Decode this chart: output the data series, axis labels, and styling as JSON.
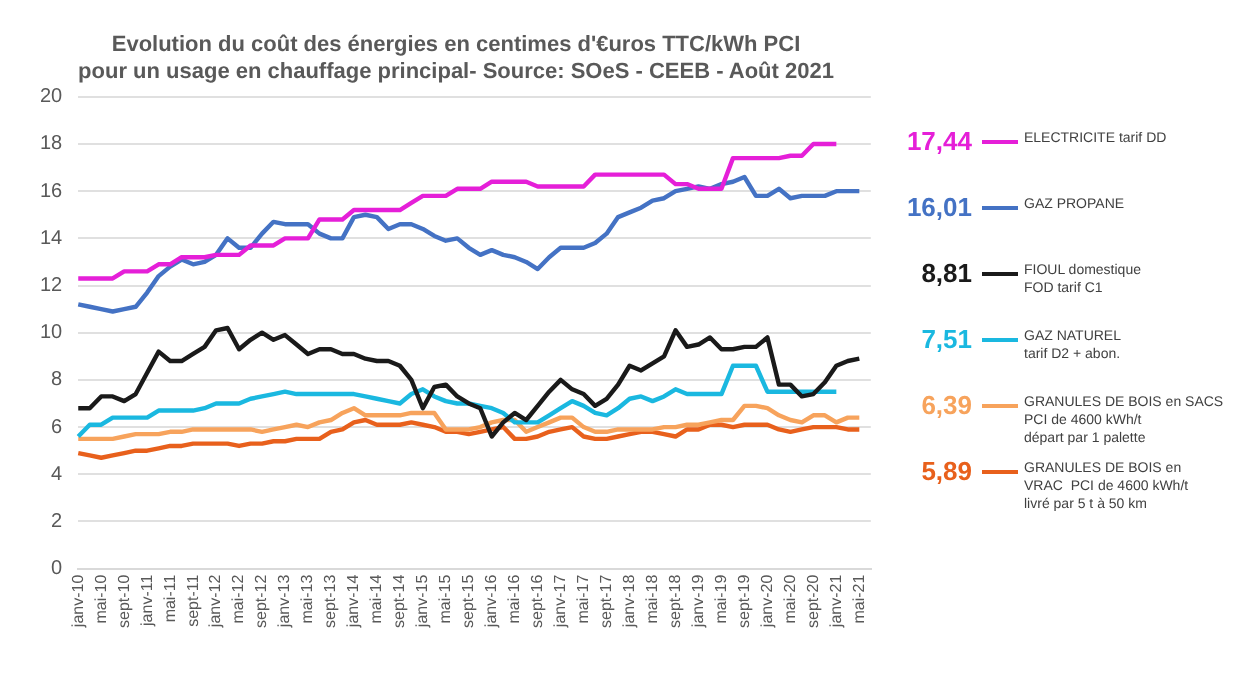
{
  "chart_data": {
    "type": "line",
    "title": "Evolution du coût des énergies en centimes d'€uros TTC/kWh PCI\npour un usage en chauffage principal- Source: SOeS - CEEB - Août 2021",
    "categories": [
      "janv-10",
      null,
      "mai-10",
      null,
      "sept-10",
      null,
      "janv-11",
      null,
      "mai-11",
      null,
      "sept-11",
      null,
      "janv-12",
      null,
      "mai-12",
      null,
      "sept-12",
      null,
      "janv-13",
      null,
      "mai-13",
      null,
      "sept-13",
      null,
      "janv-14",
      null,
      "mai-14",
      null,
      "sept-14",
      null,
      "janv-15",
      null,
      "mai-15",
      null,
      "sept-15",
      null,
      "janv-16",
      null,
      "mai-16",
      null,
      "sept-16",
      null,
      "janv-17",
      null,
      "mai-17",
      null,
      "sept-17",
      null,
      "janv-18",
      null,
      "mai-18",
      null,
      "sept-18",
      null,
      "janv-19",
      null,
      "mai-19",
      null,
      "sept-19",
      null,
      "janv-20",
      null,
      "mai-20",
      null,
      "sept-20",
      null,
      "janv-21",
      null,
      "mai-21",
      null
    ],
    "series": [
      {
        "name": "ELECTRICITE tarif DD",
        "color": "#e51fd8",
        "values": [
          12.3,
          12.3,
          12.3,
          12.3,
          12.6,
          12.6,
          12.6,
          12.9,
          12.9,
          13.2,
          13.2,
          13.2,
          13.3,
          13.3,
          13.3,
          13.7,
          13.7,
          13.7,
          14.0,
          14.0,
          14.0,
          14.8,
          14.8,
          14.8,
          15.2,
          15.2,
          15.2,
          15.2,
          15.2,
          15.5,
          15.8,
          15.8,
          15.8,
          16.1,
          16.1,
          16.1,
          16.4,
          16.4,
          16.4,
          16.4,
          16.2,
          16.2,
          16.2,
          16.2,
          16.2,
          16.7,
          16.7,
          16.7,
          16.7,
          16.7,
          16.7,
          16.7,
          16.3,
          16.3,
          16.1,
          16.1,
          16.1,
          17.4,
          17.4,
          17.4,
          17.4,
          17.4,
          17.5,
          17.5,
          18.0,
          18.0,
          18.0,
          null,
          null,
          null
        ]
      },
      {
        "name": "GAZ PROPANE",
        "color": "#4472c4",
        "values": [
          11.2,
          11.1,
          11.0,
          10.9,
          11.0,
          11.1,
          11.7,
          12.4,
          12.8,
          13.1,
          12.9,
          13.0,
          13.3,
          14.0,
          13.6,
          13.6,
          14.2,
          14.7,
          14.6,
          14.6,
          14.6,
          14.2,
          14.0,
          14.0,
          14.9,
          15.0,
          14.9,
          14.4,
          14.6,
          14.6,
          14.4,
          14.1,
          13.9,
          14.0,
          13.6,
          13.3,
          13.5,
          13.3,
          13.2,
          13.0,
          12.7,
          13.2,
          13.6,
          13.6,
          13.6,
          13.8,
          14.2,
          14.9,
          15.1,
          15.3,
          15.6,
          15.7,
          16.0,
          16.1,
          16.2,
          16.1,
          16.3,
          16.4,
          16.6,
          15.8,
          15.8,
          16.1,
          15.7,
          15.8,
          15.8,
          15.8,
          16.0,
          16.0,
          16.0,
          null
        ]
      },
      {
        "name": "FIOUL domestique\nFOD tarif C1",
        "color": "#1a1a1a",
        "values": [
          6.8,
          6.8,
          7.3,
          7.3,
          7.1,
          7.4,
          8.3,
          9.2,
          8.8,
          8.8,
          9.1,
          9.4,
          10.1,
          10.2,
          9.3,
          9.7,
          10.0,
          9.7,
          9.9,
          9.5,
          9.1,
          9.3,
          9.3,
          9.1,
          9.1,
          8.9,
          8.8,
          8.8,
          8.6,
          8.0,
          6.8,
          7.7,
          7.8,
          7.3,
          7.0,
          6.8,
          5.6,
          6.2,
          6.6,
          6.3,
          6.9,
          7.5,
          8.0,
          7.6,
          7.4,
          6.9,
          7.2,
          7.8,
          8.6,
          8.4,
          8.7,
          9.0,
          10.1,
          9.4,
          9.5,
          9.8,
          9.3,
          9.3,
          9.4,
          9.4,
          9.8,
          7.8,
          7.8,
          7.3,
          7.4,
          7.9,
          8.6,
          8.8,
          8.9,
          null
        ]
      },
      {
        "name": "GAZ NATUREL\ntarif D2 + abon.",
        "color": "#1ab8e0",
        "values": [
          5.6,
          6.1,
          6.1,
          6.4,
          6.4,
          6.4,
          6.4,
          6.7,
          6.7,
          6.7,
          6.7,
          6.8,
          7.0,
          7.0,
          7.0,
          7.2,
          7.3,
          7.4,
          7.5,
          7.4,
          7.4,
          7.4,
          7.4,
          7.4,
          7.4,
          7.3,
          7.2,
          7.1,
          7.0,
          7.4,
          7.6,
          7.3,
          7.1,
          7.0,
          7.0,
          6.9,
          6.8,
          6.6,
          6.2,
          6.2,
          6.2,
          6.5,
          6.8,
          7.1,
          6.9,
          6.6,
          6.5,
          6.8,
          7.2,
          7.3,
          7.1,
          7.3,
          7.6,
          7.4,
          7.4,
          7.4,
          7.4,
          8.6,
          8.6,
          8.6,
          7.5,
          7.5,
          7.5,
          7.5,
          7.5,
          7.5,
          7.5,
          null,
          null,
          null
        ]
      },
      {
        "name": "GRANULES DE BOIS en SACS\nPCI de 4600 kWh/t\ndépart par 1 palette",
        "color": "#f7a35c",
        "values": [
          5.5,
          5.5,
          5.5,
          5.5,
          5.6,
          5.7,
          5.7,
          5.7,
          5.8,
          5.8,
          5.9,
          5.9,
          5.9,
          5.9,
          5.9,
          5.9,
          5.8,
          5.9,
          6.0,
          6.1,
          6.0,
          6.2,
          6.3,
          6.6,
          6.8,
          6.5,
          6.5,
          6.5,
          6.5,
          6.6,
          6.6,
          6.6,
          5.9,
          5.9,
          5.9,
          6.0,
          6.2,
          6.3,
          6.3,
          5.8,
          6.0,
          6.2,
          6.4,
          6.4,
          6.0,
          5.8,
          5.8,
          5.9,
          5.9,
          5.9,
          5.9,
          6.0,
          6.0,
          6.1,
          6.1,
          6.2,
          6.3,
          6.3,
          6.9,
          6.9,
          6.8,
          6.5,
          6.3,
          6.2,
          6.5,
          6.5,
          6.2,
          6.4,
          6.4,
          null
        ]
      },
      {
        "name": "GRANULES DE BOIS en\nVRAC  PCI de 4600 kWh/t\nlivré par 5 t à 50 km",
        "color": "#e8601c",
        "values": [
          4.9,
          4.8,
          4.7,
          4.8,
          4.9,
          5.0,
          5.0,
          5.1,
          5.2,
          5.2,
          5.3,
          5.3,
          5.3,
          5.3,
          5.2,
          5.3,
          5.3,
          5.4,
          5.4,
          5.5,
          5.5,
          5.5,
          5.8,
          5.9,
          6.2,
          6.3,
          6.1,
          6.1,
          6.1,
          6.2,
          6.1,
          6.0,
          5.8,
          5.8,
          5.7,
          5.8,
          5.9,
          6.0,
          5.5,
          5.5,
          5.6,
          5.8,
          5.9,
          6.0,
          5.6,
          5.5,
          5.5,
          5.6,
          5.7,
          5.8,
          5.8,
          5.7,
          5.6,
          5.9,
          5.9,
          6.1,
          6.1,
          6.0,
          6.1,
          6.1,
          6.1,
          5.9,
          5.8,
          5.9,
          6.0,
          6.0,
          6.0,
          5.9,
          5.9,
          null
        ]
      }
    ],
    "annotations": [
      "17,44",
      "16,01",
      "8,81",
      "7,51",
      "6,39",
      "5,89"
    ],
    "ylim": [
      0,
      20
    ],
    "yticks": [
      0,
      2,
      4,
      6,
      8,
      10,
      12,
      14,
      16,
      18,
      20
    ],
    "grid": "y",
    "legend": "right",
    "marker": "none",
    "line_style": "solid"
  }
}
